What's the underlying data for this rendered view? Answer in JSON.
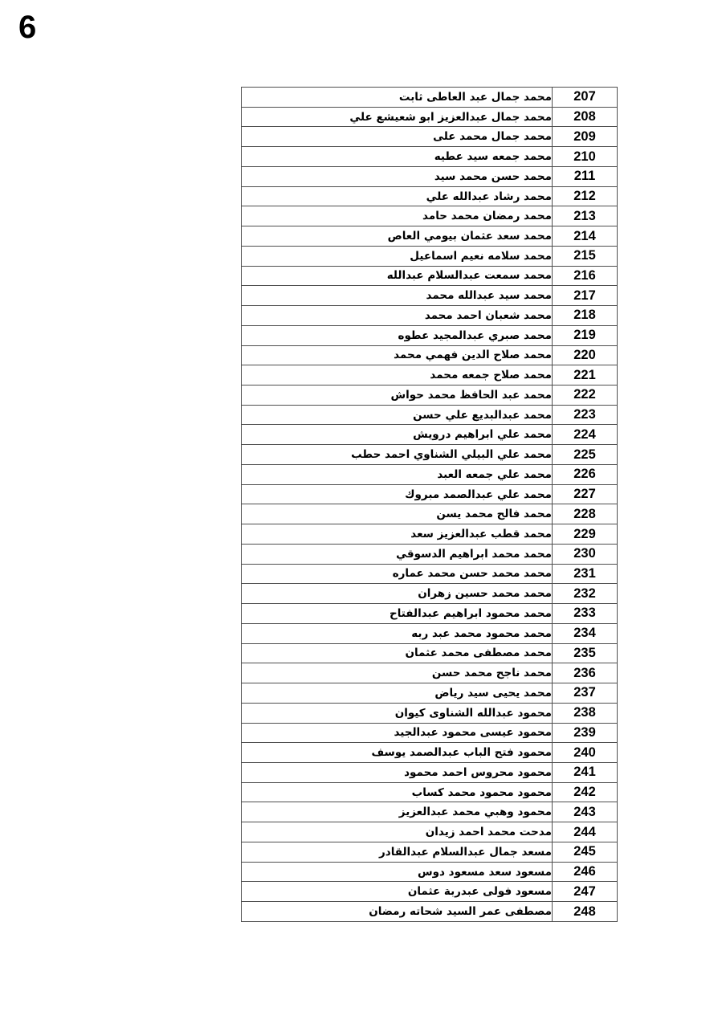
{
  "page": {
    "number": "6"
  },
  "colors": {
    "background": "#ffffff",
    "border": "#4f4f4f",
    "text": "#000000"
  },
  "table": {
    "rows": [
      {
        "serial": "207",
        "name": "محمد جمال عبد العاطى ثابت"
      },
      {
        "serial": "208",
        "name": "محمد جمال عبدالعزيز ابو شعيشع علي"
      },
      {
        "serial": "209",
        "name": "محمد جمال محمد على"
      },
      {
        "serial": "210",
        "name": "محمد جمعه سيد عطيه"
      },
      {
        "serial": "211",
        "name": "محمد حسن محمد سيد"
      },
      {
        "serial": "212",
        "name": "محمد رشاد عبدالله علي"
      },
      {
        "serial": "213",
        "name": "محمد رمضان محمد حامد"
      },
      {
        "serial": "214",
        "name": "محمد سعد عثمان بيومي العاص"
      },
      {
        "serial": "215",
        "name": "محمد سلامه نعيم اسماعيل"
      },
      {
        "serial": "216",
        "name": "محمد سمعت عبدالسلام عبدالله"
      },
      {
        "serial": "217",
        "name": "محمد سيد عبدالله محمد"
      },
      {
        "serial": "218",
        "name": "محمد شعبان احمد محمد"
      },
      {
        "serial": "219",
        "name": "محمد صبري عبدالمجيد عطوه"
      },
      {
        "serial": "220",
        "name": "محمد صلاح الدين فهمي محمد"
      },
      {
        "serial": "221",
        "name": "محمد صلاح جمعه محمد"
      },
      {
        "serial": "222",
        "name": "محمد عبد الحافظ محمد حواش"
      },
      {
        "serial": "223",
        "name": "محمد عبدالبديع علي حسن"
      },
      {
        "serial": "224",
        "name": "محمد علي ابراهيم درويش"
      },
      {
        "serial": "225",
        "name": "محمد علي البيلي الشناوي احمد حطب"
      },
      {
        "serial": "226",
        "name": "محمد علي جمعه العبد"
      },
      {
        "serial": "227",
        "name": "محمد علي عبدالصمد مبروك"
      },
      {
        "serial": "228",
        "name": "محمد فالح محمد يسن"
      },
      {
        "serial": "229",
        "name": "محمد قطب عبدالعزيز سعد"
      },
      {
        "serial": "230",
        "name": "محمد محمد ابراهيم الدسوقي"
      },
      {
        "serial": "231",
        "name": "محمد محمد حسن محمد عماره"
      },
      {
        "serial": "232",
        "name": "محمد محمد حسين زهران"
      },
      {
        "serial": "233",
        "name": "محمد محمود ابراهيم عبدالفتاح"
      },
      {
        "serial": "234",
        "name": "محمد محمود محمد عبد ربه"
      },
      {
        "serial": "235",
        "name": "محمد مصطفى محمد عثمان"
      },
      {
        "serial": "236",
        "name": "محمد ناجح محمد حسن"
      },
      {
        "serial": "237",
        "name": "محمد يحيى سيد رياض"
      },
      {
        "serial": "238",
        "name": "محمود عبدالله الشناوى كيوان"
      },
      {
        "serial": "239",
        "name": "محمود عيسى محمود عبدالجيد"
      },
      {
        "serial": "240",
        "name": "محمود فتح الباب عبدالصمد يوسف"
      },
      {
        "serial": "241",
        "name": "محمود محروس احمد محمود"
      },
      {
        "serial": "242",
        "name": "محمود محمود محمد كساب"
      },
      {
        "serial": "243",
        "name": "محمود وهبي محمد عبدالعزيز"
      },
      {
        "serial": "244",
        "name": "مدحت محمد احمد زيدان"
      },
      {
        "serial": "245",
        "name": "مسعد جمال عبدالسلام عبدالقادر"
      },
      {
        "serial": "246",
        "name": "مسعود سعد مسعود دوس"
      },
      {
        "serial": "247",
        "name": "مسعود فولى عبدربة عثمان"
      },
      {
        "serial": "248",
        "name": "مصطفى عمر السيد شحاته رمضان"
      }
    ]
  }
}
